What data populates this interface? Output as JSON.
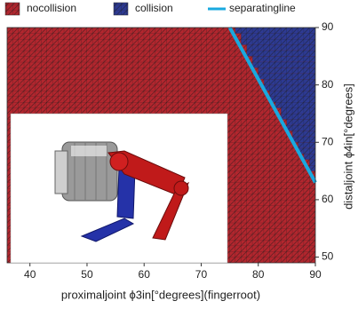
{
  "chart_data": {
    "type": "heatmap",
    "x_label": "proximaljoint  ϕ3in[°degrees](fingerroot)",
    "y_label": "distaljoint  ϕ4in[°degrees]",
    "xlim": [
      36,
      90
    ],
    "xticks": [
      40,
      50,
      60,
      70,
      80,
      90
    ],
    "ylim": [
      49,
      90
    ],
    "yticks": [
      50,
      60,
      70,
      80,
      90
    ],
    "series": [
      {
        "name": "nocollision",
        "color": "#b3262e"
      },
      {
        "name": "collision",
        "color": "#2d3a93",
        "y": [
          65,
          66,
          67,
          68,
          69,
          70,
          71,
          72,
          73,
          74,
          75,
          76,
          77,
          78,
          79,
          80,
          81,
          82,
          83,
          84,
          85,
          86,
          87,
          88,
          89
        ],
        "x": [
          89,
          89,
          88,
          87,
          87,
          86,
          86,
          85,
          85,
          84,
          84,
          83,
          82,
          82,
          81,
          81,
          80,
          80,
          79,
          79,
          78,
          78,
          77,
          77,
          76
        ]
      },
      {
        "name": "separatingline",
        "color": "#19a9df",
        "x": [
          75,
          90
        ],
        "y": [
          90,
          63
        ]
      }
    ]
  }
}
